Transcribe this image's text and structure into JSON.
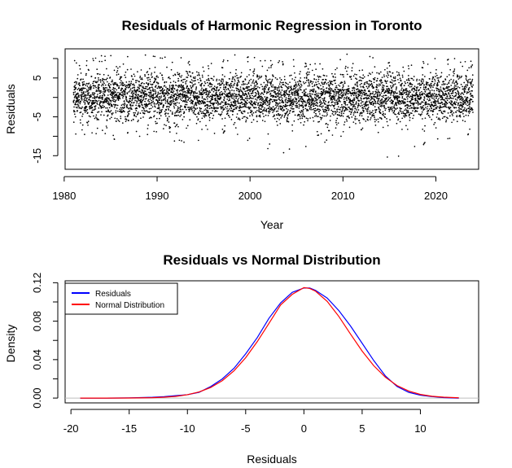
{
  "chart_data": [
    {
      "type": "scatter",
      "title": "Residuals of Harmonic Regression in Toronto",
      "xlabel": "Year",
      "ylabel": "Residuals",
      "xlim": [
        1980.1,
        2024.6
      ],
      "ylim": [
        -18.5,
        12.5
      ],
      "xticks": [
        1980,
        1990,
        2000,
        2010,
        2020
      ],
      "yticks": [
        -15,
        -10,
        -5,
        0,
        5,
        10
      ],
      "ytick_labels": [
        "-15",
        "",
        "-5",
        "",
        "5",
        ""
      ],
      "grid": false,
      "point_color": "#000000",
      "x_start": 1981.0,
      "x_end": 2024.0,
      "noise_sd": 3.1,
      "envelope": [
        {
          "x": 1981,
          "low": -10,
          "high": 10
        },
        {
          "x": 1985,
          "low": -11,
          "high": 11
        },
        {
          "x": 1990,
          "low": -10,
          "high": 12
        },
        {
          "x": 1994,
          "low": -13,
          "high": 10
        },
        {
          "x": 1998,
          "low": -9,
          "high": 11
        },
        {
          "x": 2003,
          "low": -15,
          "high": 10
        },
        {
          "x": 2007,
          "low": -12,
          "high": 10
        },
        {
          "x": 2012,
          "low": -10,
          "high": 12
        },
        {
          "x": 2015,
          "low": -18,
          "high": 10
        },
        {
          "x": 2020,
          "low": -11,
          "high": 10
        },
        {
          "x": 2024,
          "low": -10,
          "high": 10
        }
      ]
    },
    {
      "type": "line",
      "title": "Residuals vs Normal Distribution",
      "xlabel": "Residuals",
      "ylabel": "Density",
      "xlim": [
        -20.5,
        15.0
      ],
      "ylim": [
        -0.005,
        0.122
      ],
      "xticks": [
        -20,
        -15,
        -10,
        -5,
        0,
        5,
        10
      ],
      "yticks": [
        0.0,
        0.02,
        0.04,
        0.06,
        0.08,
        0.1,
        0.12
      ],
      "ytick_labels": [
        "0.00",
        "",
        "0.04",
        "",
        "0.08",
        "",
        "0.12"
      ],
      "grid": false,
      "baseline": 0,
      "legend_position": "top-left",
      "series": [
        {
          "name": "Residuals",
          "color": "#0000ff",
          "x": [
            -19.2,
            -17,
            -15,
            -13,
            -12,
            -11,
            -10,
            -9,
            -8,
            -7,
            -6,
            -5,
            -4,
            -3,
            -2,
            -1,
            0,
            0.5,
            1,
            2,
            3,
            4,
            5,
            6,
            7,
            8,
            9,
            10,
            11,
            12,
            13.3
          ],
          "y": [
            0.0,
            0.0,
            0.0002,
            0.0008,
            0.0015,
            0.0025,
            0.0035,
            0.006,
            0.012,
            0.02,
            0.031,
            0.046,
            0.063,
            0.083,
            0.099,
            0.11,
            0.1145,
            0.1145,
            0.112,
            0.104,
            0.091,
            0.075,
            0.057,
            0.039,
            0.023,
            0.012,
            0.006,
            0.003,
            0.0015,
            0.0005,
            0.0
          ]
        },
        {
          "name": "Normal Distribution",
          "color": "#ff0000",
          "x": [
            -19.2,
            -17,
            -15,
            -13,
            -12,
            -11,
            -10,
            -9,
            -8,
            -7,
            -6,
            -5,
            -4,
            -3,
            -2,
            -1,
            0,
            0.5,
            1,
            2,
            3,
            4,
            5,
            6,
            7,
            8,
            9,
            10,
            11,
            12,
            13.3
          ],
          "y": [
            0.0,
            0.0,
            0.0001,
            0.0004,
            0.0009,
            0.0018,
            0.0035,
            0.0064,
            0.011,
            0.0182,
            0.0284,
            0.042,
            0.0588,
            0.0777,
            0.0969,
            0.1079,
            0.1149,
            0.114,
            0.1112,
            0.1006,
            0.0849,
            0.0666,
            0.0489,
            0.0336,
            0.0216,
            0.013,
            0.0073,
            0.0038,
            0.0019,
            0.0009,
            0.0003
          ]
        }
      ]
    }
  ]
}
